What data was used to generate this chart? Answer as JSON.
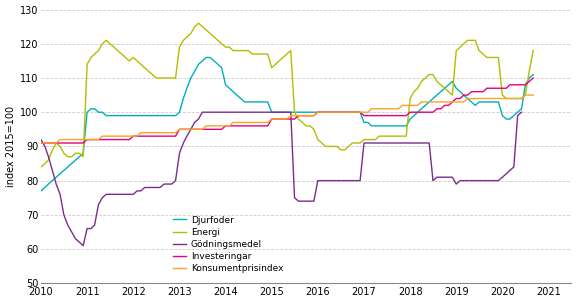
{
  "title": "",
  "ylabel": "index 2015=100",
  "ylim": [
    50,
    130
  ],
  "yticks": [
    50,
    60,
    70,
    80,
    90,
    100,
    110,
    120,
    130
  ],
  "colors": {
    "Djurfoder": "#00b0b9",
    "Energi": "#b5bd00",
    "Gödningsmedel": "#7b2d8b",
    "Investeringar": "#e6007e",
    "Konsumentprisindex": "#f5a623"
  },
  "linewidth": 1.0,
  "grid_color": "#cccccc",
  "background_color": "#ffffff",
  "Djurfoder": [
    77,
    78,
    79,
    80,
    81,
    82,
    83,
    84,
    85,
    86,
    87,
    88,
    100,
    101,
    101,
    100,
    100,
    99,
    99,
    99,
    99,
    99,
    99,
    99,
    99,
    99,
    99,
    99,
    99,
    99,
    99,
    99,
    99,
    99,
    99,
    99,
    100,
    104,
    107,
    110,
    112,
    114,
    115,
    116,
    116,
    115,
    114,
    113,
    108,
    107,
    106,
    105,
    104,
    103,
    103,
    103,
    103,
    103,
    103,
    103,
    100,
    100,
    100,
    100,
    100,
    100,
    100,
    100,
    100,
    100,
    100,
    100,
    100,
    100,
    100,
    100,
    100,
    100,
    100,
    100,
    100,
    100,
    100,
    100,
    97,
    97,
    96,
    96,
    96,
    96,
    96,
    96,
    96,
    96,
    96,
    96,
    98,
    99,
    100,
    101,
    102,
    103,
    104,
    105,
    106,
    107,
    108,
    109,
    107,
    106,
    105,
    104,
    103,
    102,
    103,
    103,
    103,
    103,
    103,
    103,
    99,
    98,
    98,
    99,
    100,
    101,
    108,
    110,
    111
  ],
  "Energi": [
    84,
    85,
    86,
    89,
    91,
    90,
    88,
    87,
    87,
    88,
    88,
    87,
    114,
    116,
    117,
    118,
    120,
    121,
    120,
    119,
    118,
    117,
    116,
    115,
    116,
    115,
    114,
    113,
    112,
    111,
    110,
    110,
    110,
    110,
    110,
    110,
    119,
    121,
    122,
    123,
    125,
    126,
    125,
    124,
    123,
    122,
    121,
    120,
    119,
    119,
    118,
    118,
    118,
    118,
    118,
    117,
    117,
    117,
    117,
    117,
    113,
    114,
    115,
    116,
    117,
    118,
    100,
    98,
    97,
    96,
    96,
    95,
    92,
    91,
    90,
    90,
    90,
    90,
    89,
    89,
    90,
    91,
    91,
    91,
    92,
    92,
    92,
    92,
    93,
    93,
    93,
    93,
    93,
    93,
    93,
    93,
    104,
    106,
    107,
    109,
    110,
    111,
    111,
    109,
    108,
    107,
    106,
    105,
    118,
    119,
    120,
    121,
    121,
    121,
    118,
    117,
    116,
    116,
    116,
    116,
    105,
    104,
    104,
    104,
    104,
    104,
    105,
    112,
    118
  ],
  "Gödningsmedel": [
    92,
    90,
    87,
    83,
    79,
    76,
    70,
    67,
    65,
    63,
    62,
    61,
    66,
    66,
    67,
    73,
    75,
    76,
    76,
    76,
    76,
    76,
    76,
    76,
    76,
    77,
    77,
    78,
    78,
    78,
    78,
    78,
    79,
    79,
    79,
    80,
    88,
    91,
    93,
    95,
    97,
    98,
    100,
    100,
    100,
    100,
    100,
    100,
    100,
    100,
    100,
    100,
    100,
    100,
    100,
    100,
    100,
    100,
    100,
    100,
    100,
    100,
    100,
    100,
    100,
    100,
    75,
    74,
    74,
    74,
    74,
    74,
    80,
    80,
    80,
    80,
    80,
    80,
    80,
    80,
    80,
    80,
    80,
    80,
    91,
    91,
    91,
    91,
    91,
    91,
    91,
    91,
    91,
    91,
    91,
    91,
    91,
    91,
    91,
    91,
    91,
    91,
    80,
    81,
    81,
    81,
    81,
    81,
    79,
    80,
    80,
    80,
    80,
    80,
    80,
    80,
    80,
    80,
    80,
    80,
    81,
    82,
    83,
    84,
    99,
    100
  ],
  "Investeringar": [
    91,
    91,
    91,
    91,
    91,
    91,
    91,
    91,
    91,
    91,
    91,
    91,
    92,
    92,
    92,
    92,
    92,
    92,
    92,
    92,
    92,
    92,
    92,
    92,
    93,
    93,
    93,
    93,
    93,
    93,
    93,
    93,
    93,
    93,
    93,
    93,
    95,
    95,
    95,
    95,
    95,
    95,
    95,
    95,
    95,
    95,
    95,
    95,
    96,
    96,
    96,
    96,
    96,
    96,
    96,
    96,
    96,
    96,
    96,
    96,
    98,
    98,
    98,
    98,
    98,
    98,
    98,
    99,
    99,
    99,
    99,
    99,
    100,
    100,
    100,
    100,
    100,
    100,
    100,
    100,
    100,
    100,
    100,
    100,
    99,
    99,
    99,
    99,
    99,
    99,
    99,
    99,
    99,
    99,
    99,
    99,
    100,
    100,
    100,
    100,
    100,
    100,
    100,
    101,
    101,
    102,
    102,
    103,
    104,
    104,
    105,
    105,
    106,
    106,
    106,
    106,
    107,
    107,
    107,
    107,
    107,
    107,
    108,
    108,
    108,
    108,
    108,
    109,
    110
  ],
  "Konsumentprisindex": [
    91,
    91,
    91,
    91,
    91,
    92,
    92,
    92,
    92,
    92,
    92,
    92,
    92,
    92,
    92,
    92,
    93,
    93,
    93,
    93,
    93,
    93,
    93,
    93,
    93,
    93,
    94,
    94,
    94,
    94,
    94,
    94,
    94,
    94,
    94,
    94,
    95,
    95,
    95,
    95,
    95,
    95,
    95,
    96,
    96,
    96,
    96,
    96,
    96,
    96,
    97,
    97,
    97,
    97,
    97,
    97,
    97,
    97,
    97,
    97,
    98,
    98,
    98,
    98,
    98,
    99,
    99,
    99,
    99,
    99,
    99,
    99,
    100,
    100,
    100,
    100,
    100,
    100,
    100,
    100,
    100,
    100,
    100,
    100,
    100,
    100,
    101,
    101,
    101,
    101,
    101,
    101,
    101,
    101,
    102,
    102,
    102,
    102,
    102,
    103,
    103,
    103,
    103,
    103,
    103,
    103,
    103,
    103,
    103,
    103,
    103,
    104,
    104,
    104,
    104,
    104,
    104,
    104,
    104,
    104,
    104,
    104,
    104,
    104,
    104,
    104,
    105,
    105,
    105
  ]
}
